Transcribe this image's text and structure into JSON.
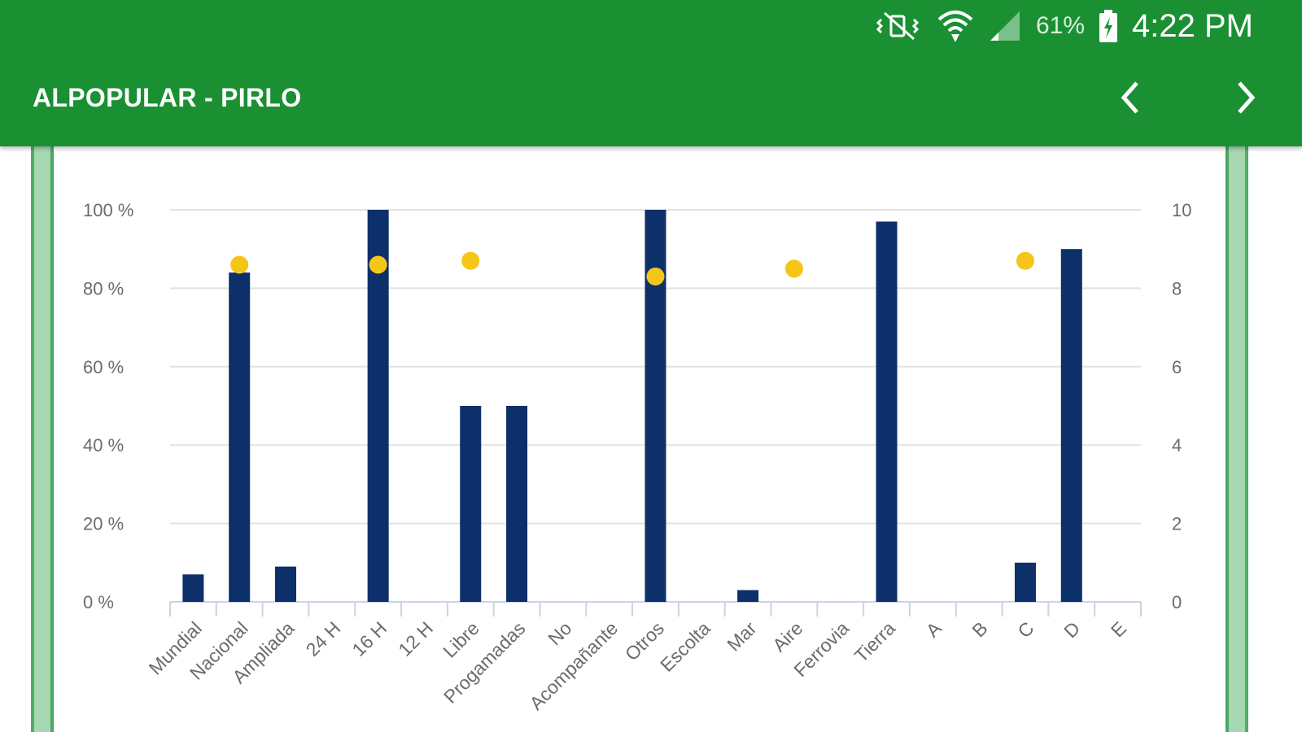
{
  "status_bar": {
    "battery": "61%",
    "time": "4:22 PM",
    "icons": [
      "vibrate-mute-icon",
      "wifi-icon",
      "signal-icon",
      "battery-charging-icon"
    ]
  },
  "app_bar": {
    "title": "ALPOPULAR - PIRLO",
    "prev_icon": "chevron-left-icon",
    "next_icon": "chevron-right-icon"
  },
  "colors": {
    "primary": "#1a9033",
    "bar": "#0d2f6a",
    "point": "#f5c518",
    "grid": "#e2e2e2",
    "axis_text": "#6b6b6b"
  },
  "chart_data": {
    "type": "bar",
    "categories": [
      "Mundial",
      "Nacional",
      "Ampliada",
      "24 H",
      "16 H",
      "12 H",
      "Libre",
      "Progamadas",
      "No",
      "Acompañante",
      "Otros",
      "Escolta",
      "Mar",
      "Aire",
      "Ferrovia",
      "Tierra",
      "A",
      "B",
      "C",
      "D",
      "E"
    ],
    "series": [
      {
        "type": "bar",
        "axis": "left",
        "values": [
          7,
          84,
          9,
          0,
          100,
          0,
          50,
          50,
          0,
          0,
          100,
          0,
          3,
          0,
          0,
          97,
          0,
          0,
          10,
          90,
          0
        ]
      },
      {
        "type": "scatter",
        "axis": "right",
        "values": [
          null,
          8.6,
          null,
          null,
          8.6,
          null,
          8.7,
          null,
          null,
          null,
          8.3,
          null,
          null,
          8.5,
          null,
          null,
          null,
          null,
          8.7,
          null,
          null
        ]
      }
    ],
    "y_left": {
      "min": 0,
      "max": 100,
      "ticks": [
        "0 %",
        "20 %",
        "40 %",
        "60 %",
        "80 %",
        "100 %"
      ]
    },
    "y_right": {
      "min": 0,
      "max": 10,
      "ticks": [
        "0",
        "2",
        "4",
        "6",
        "8",
        "10"
      ]
    },
    "grid": true,
    "legend": "none"
  }
}
